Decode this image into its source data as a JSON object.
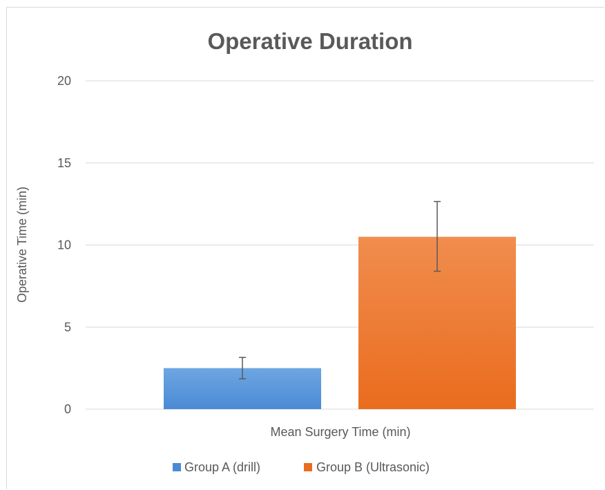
{
  "chart_data": {
    "type": "bar",
    "title": "Operative Duration",
    "xlabel": "Mean Surgery Time (min)",
    "ylabel": "Operative Time (min)",
    "ylim": [
      0,
      20
    ],
    "yticks": [
      "0",
      "5",
      "10",
      "15",
      "20"
    ],
    "categories": [
      "Mean Surgery Time (min)"
    ],
    "grid": true,
    "legend_position": "bottom",
    "series": [
      {
        "name": "Group A (drill)",
        "values": [
          2.5
        ],
        "error_low": [
          1.85
        ],
        "error_high": [
          3.15
        ],
        "color": "#4a8ad4",
        "color_light": "#6ea6e2"
      },
      {
        "name": "Group B (Ultrasonic)",
        "values": [
          10.5
        ],
        "error_low": [
          8.4
        ],
        "error_high": [
          12.65
        ],
        "color": "#ea6c1e",
        "color_light": "#f08d4e"
      }
    ]
  }
}
